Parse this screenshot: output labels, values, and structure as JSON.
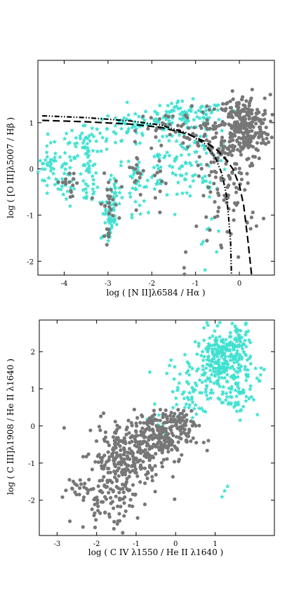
{
  "chart_data": [
    {
      "type": "scatter",
      "xlabel": "log ( [N II]λ6584 / Hα )",
      "ylabel": "log ( [O III]λ5007 / Hβ )",
      "xlim": [
        -4.6,
        0.8
      ],
      "ylim": [
        -2.3,
        2.35
      ],
      "xticks": [
        -4,
        -3,
        -2,
        -1,
        0
      ],
      "yticks": [
        -2,
        -1,
        0,
        1
      ],
      "colors": {
        "gray": "#777777",
        "cyan": "#40e0d0"
      },
      "series": [
        {
          "marker": "star",
          "color": "#40e0d0",
          "clusters": [
            {
              "x": -4.35,
              "y": 0.05,
              "sx": 0.12,
              "sy": 0.22,
              "n": 30
            },
            {
              "x": -3.95,
              "y": -0.2,
              "sx": 0.12,
              "sy": 0.3,
              "n": 35
            },
            {
              "x": -3.45,
              "y": -0.2,
              "sx": 0.1,
              "sy": 0.35,
              "n": 40
            },
            {
              "x": -3.0,
              "y": -1.05,
              "sx": 0.08,
              "sy": 0.3,
              "n": 35
            },
            {
              "x": -2.85,
              "y": -0.6,
              "sx": 0.1,
              "sy": 0.45,
              "n": 35
            },
            {
              "x": -2.35,
              "y": -0.25,
              "sx": 0.1,
              "sy": 0.35,
              "n": 35
            },
            {
              "x": -1.85,
              "y": 0.0,
              "sx": 0.12,
              "sy": 0.35,
              "n": 30
            },
            {
              "x": -1.35,
              "y": 0.2,
              "sx": 0.12,
              "sy": 0.35,
              "n": 30
            },
            {
              "x": -3.5,
              "y": 0.6,
              "sx": 0.5,
              "sy": 0.12,
              "n": 40
            },
            {
              "x": -2.3,
              "y": 0.95,
              "sx": 0.6,
              "sy": 0.15,
              "n": 70
            },
            {
              "x": -1.2,
              "y": 1.15,
              "sx": 0.45,
              "sy": 0.15,
              "n": 80
            },
            {
              "x": -0.8,
              "y": 0.3,
              "sx": 0.3,
              "sy": 0.4,
              "n": 50
            },
            {
              "x": -0.8,
              "y": -1.1,
              "sx": 0.25,
              "sy": 0.45,
              "n": 12
            }
          ]
        },
        {
          "marker": "circle",
          "color": "#777777",
          "clusters": [
            {
              "x": 0.1,
              "y": 0.9,
              "sx": 0.3,
              "sy": 0.35,
              "n": 260
            },
            {
              "x": -0.5,
              "y": 0.5,
              "sx": 0.35,
              "sy": 0.45,
              "n": 110
            },
            {
              "x": -0.2,
              "y": -0.6,
              "sx": 0.35,
              "sy": 0.5,
              "n": 60
            },
            {
              "x": -3.9,
              "y": -0.35,
              "sx": 0.12,
              "sy": 0.15,
              "n": 15
            },
            {
              "x": -3.0,
              "y": -0.75,
              "sx": 0.12,
              "sy": 0.3,
              "n": 25
            },
            {
              "x": -2.3,
              "y": 0.05,
              "sx": 0.12,
              "sy": 0.3,
              "n": 15
            },
            {
              "x": -1.85,
              "y": -0.45,
              "sx": 0.1,
              "sy": 0.4,
              "n": 10
            },
            {
              "x": -1.6,
              "y": 0.9,
              "sx": 0.35,
              "sy": 0.15,
              "n": 30
            },
            {
              "x": -3.0,
              "y": -1.45,
              "sx": 0.05,
              "sy": 0.12,
              "n": 6
            },
            {
              "x": -1.25,
              "y": -2.05,
              "sx": 0.05,
              "sy": 0.2,
              "n": 4
            }
          ]
        }
      ],
      "curves": [
        {
          "name": "",
          "style": "dashed",
          "x": [
            -4.5,
            -3.5,
            -2.5,
            -1.8,
            -1.2,
            -0.8,
            -0.5,
            -0.3,
            -0.15,
            0.0,
            0.1,
            0.2,
            0.28
          ],
          "y": [
            1.05,
            1.02,
            0.97,
            0.9,
            0.76,
            0.6,
            0.4,
            0.2,
            0.0,
            -0.35,
            -0.8,
            -1.6,
            -2.3
          ]
        },
        {
          "name": "",
          "style": "dashdot",
          "x": [
            -4.5,
            -3.5,
            -2.5,
            -1.8,
            -1.2,
            -0.8,
            -0.55,
            -0.4,
            -0.3,
            -0.25,
            -0.2,
            -0.18
          ],
          "y": [
            1.15,
            1.11,
            1.04,
            0.95,
            0.78,
            0.55,
            0.25,
            -0.1,
            -0.55,
            -1.0,
            -1.6,
            -2.3
          ]
        }
      ]
    },
    {
      "type": "scatter",
      "xlabel": "log ( C IV λ1550 / He II λ1640 )",
      "ylabel": "log ( C III]λ1908 / He II λ1640 )",
      "xlim": [
        -3.45,
        2.5
      ],
      "ylim": [
        -2.95,
        2.85
      ],
      "xticks": [
        -3,
        -2,
        -1,
        0,
        1
      ],
      "yticks": [
        -2,
        -1,
        0,
        1,
        2
      ],
      "colors": {
        "gray": "#777777",
        "cyan": "#40e0d0"
      },
      "series": [
        {
          "marker": "star",
          "color": "#40e0d0",
          "clusters": [
            {
              "x": 1.2,
              "y": 1.7,
              "sx": 0.35,
              "sy": 0.45,
              "n": 280
            },
            {
              "x": 1.55,
              "y": 2.3,
              "sx": 0.15,
              "sy": 0.3,
              "n": 40
            },
            {
              "x": 0.4,
              "y": 1.0,
              "sx": 0.35,
              "sy": 0.35,
              "n": 60
            },
            {
              "x": 1.6,
              "y": 0.85,
              "sx": 0.25,
              "sy": 0.3,
              "n": 40
            },
            {
              "x": 1.25,
              "y": -1.45,
              "sx": 0.03,
              "sy": 0.3,
              "n": 3
            },
            {
              "x": -0.6,
              "y": 0.1,
              "sx": 0.2,
              "sy": 0.15,
              "n": 6
            }
          ]
        },
        {
          "marker": "circle",
          "color": "#777777",
          "clusters": [
            {
              "x": -0.6,
              "y": -0.3,
              "sx": 0.5,
              "sy": 0.35,
              "n": 260
            },
            {
              "x": -1.3,
              "y": -1.0,
              "sx": 0.45,
              "sy": 0.45,
              "n": 200
            },
            {
              "x": -1.7,
              "y": -2.1,
              "sx": 0.35,
              "sy": 0.35,
              "n": 60
            },
            {
              "x": -2.3,
              "y": -1.7,
              "sx": 0.3,
              "sy": 0.2,
              "n": 25
            },
            {
              "x": 0.1,
              "y": 0.1,
              "sx": 0.2,
              "sy": 0.15,
              "n": 50
            }
          ]
        }
      ]
    }
  ]
}
